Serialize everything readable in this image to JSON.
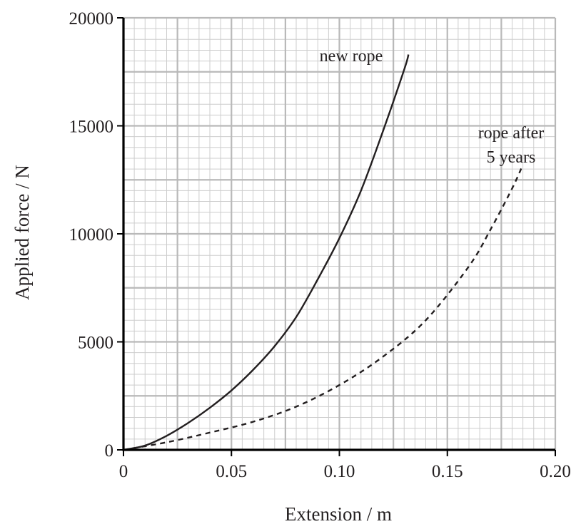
{
  "chart_data": {
    "type": "line",
    "xlabel": "Extension / m",
    "ylabel": "Applied force / N",
    "xlim": [
      0,
      0.2
    ],
    "ylim": [
      0,
      20000
    ],
    "x_ticks": [
      "0",
      "0.05",
      "0.10",
      "0.15",
      "0.20"
    ],
    "x_tick_values": [
      0,
      0.05,
      0.1,
      0.15,
      0.2
    ],
    "y_ticks": [
      "0",
      "5000",
      "10000",
      "15000",
      "20000"
    ],
    "y_tick_values": [
      0,
      5000,
      10000,
      15000,
      20000
    ],
    "grid": true,
    "series": [
      {
        "name": "new rope",
        "style": "solid",
        "color": "#231f20",
        "x": [
          0,
          0.01,
          0.02,
          0.03,
          0.04,
          0.05,
          0.06,
          0.07,
          0.08,
          0.09,
          0.1,
          0.11,
          0.12,
          0.13,
          0.132
        ],
        "y": [
          0,
          200,
          650,
          1250,
          1950,
          2750,
          3700,
          4800,
          6150,
          7900,
          9800,
          12000,
          14700,
          17600,
          18300
        ]
      },
      {
        "name": "rope after 5 years",
        "label_lines": [
          "rope after",
          "5 years"
        ],
        "style": "dashed",
        "color": "#231f20",
        "x": [
          0,
          0.02,
          0.04,
          0.06,
          0.08,
          0.1,
          0.12,
          0.14,
          0.16,
          0.17,
          0.18,
          0.185
        ],
        "y": [
          0,
          350,
          800,
          1300,
          2000,
          3000,
          4300,
          6000,
          8500,
          10200,
          12100,
          13200
        ]
      }
    ]
  }
}
